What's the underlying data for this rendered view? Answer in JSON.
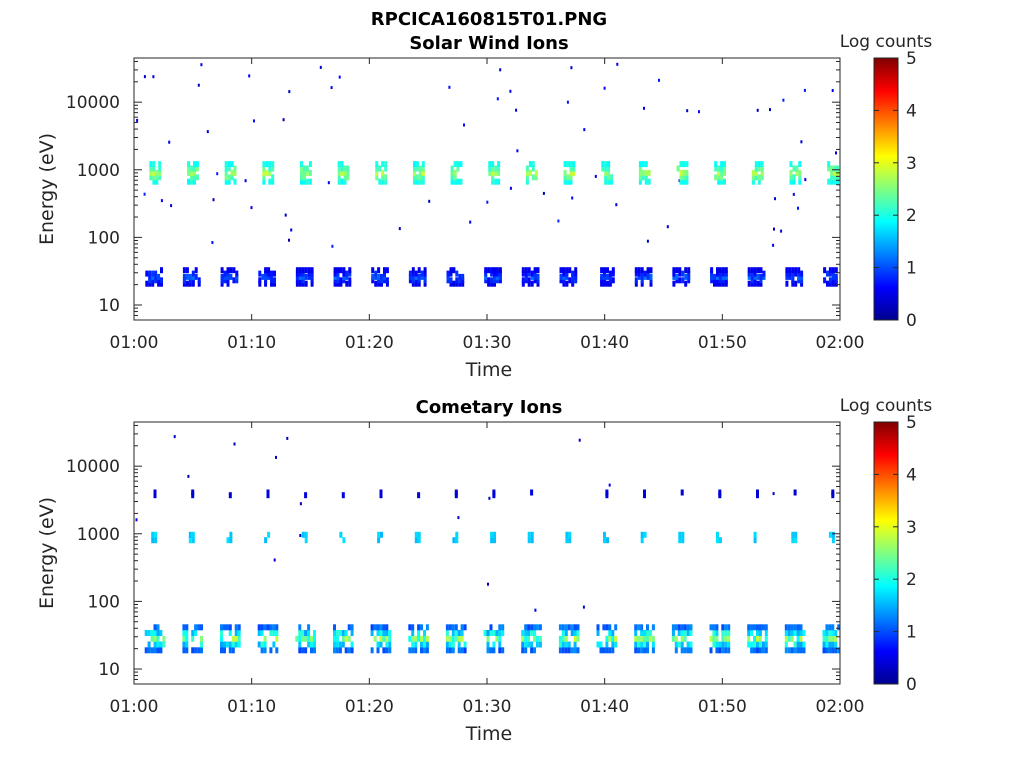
{
  "figure": {
    "main_title": "RPCICA160815T01.PNG",
    "colormap": [
      "#00008f",
      "#0000ff",
      "#0080ff",
      "#00ffff",
      "#80ff80",
      "#ffff00",
      "#ff8000",
      "#ff0000",
      "#800000"
    ]
  },
  "chart_data": [
    {
      "type": "heatmap",
      "title": "Solar Wind Ions",
      "xlabel": "Time",
      "ylabel": "Energy (eV)",
      "xticks": [
        "01:00",
        "01:10",
        "01:20",
        "01:30",
        "01:40",
        "01:50",
        "02:00"
      ],
      "yticks": [
        "10",
        "100",
        "1000",
        "10000"
      ],
      "y_scale": "log",
      "xlim": [
        0,
        60
      ],
      "ylim": [
        6,
        45000
      ],
      "colorbar": {
        "label": "Log counts",
        "range": [
          0,
          5
        ],
        "ticks": [
          "0",
          "1",
          "2",
          "3",
          "4",
          "5"
        ]
      },
      "scan_period_min": 3.2,
      "bands": [
        {
          "energy_center": 900,
          "energy_spread": 0.13,
          "log_counts": [
            1.5,
            2.9
          ],
          "time_width_min": 0.9
        },
        {
          "energy_center": 26,
          "energy_spread": 0.1,
          "log_counts": [
            0.2,
            1.2
          ],
          "time_width_min": 1.6
        }
      ],
      "background_log_counts": [
        0.2,
        0.8
      ],
      "grid": false
    },
    {
      "type": "heatmap",
      "title": "Cometary Ions",
      "xlabel": "Time",
      "ylabel": "Energy (eV)",
      "xticks": [
        "01:00",
        "01:10",
        "01:20",
        "01:30",
        "01:40",
        "01:50",
        "02:00"
      ],
      "yticks": [
        "10",
        "100",
        "1000",
        "10000"
      ],
      "y_scale": "log",
      "xlim": [
        0,
        60
      ],
      "ylim": [
        6,
        45000
      ],
      "colorbar": {
        "label": "Log counts",
        "range": [
          0,
          5
        ],
        "ticks": [
          "0",
          "1",
          "2",
          "3",
          "4",
          "5"
        ]
      },
      "scan_period_min": 3.2,
      "bands": [
        {
          "energy_center": 28,
          "energy_spread": 0.17,
          "log_counts": [
            0.3,
            2.9
          ],
          "time_width_min": 1.7
        },
        {
          "energy_center": 880,
          "energy_spread": 0.04,
          "log_counts": [
            1.2,
            2.0
          ],
          "time_width_min": 0.6
        },
        {
          "energy_center": 3900,
          "energy_spread": 0.02,
          "log_counts": [
            0.2,
            0.6
          ],
          "time_width_min": 0.2
        }
      ],
      "background_log_counts": [
        0.2,
        0.6
      ],
      "grid": false
    }
  ]
}
